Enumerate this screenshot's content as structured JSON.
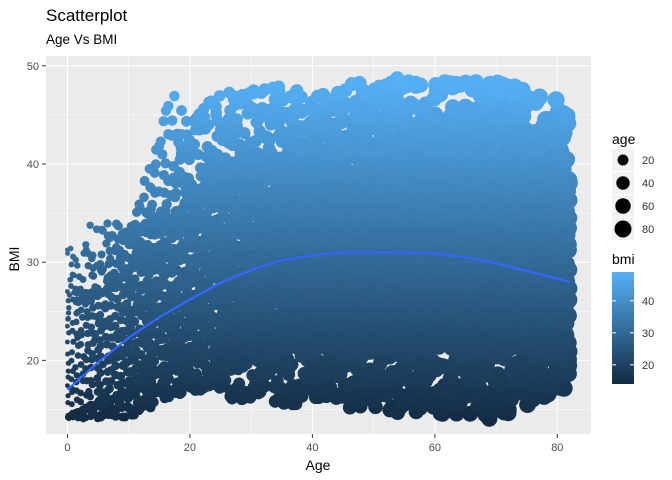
{
  "chart_data": {
    "type": "scatter",
    "title": "Scatterplot",
    "subtitle": "Age Vs BMI",
    "xlabel": "Age",
    "ylabel": "BMI",
    "xlim": [
      -3.5,
      85.5
    ],
    "ylim": [
      12.5,
      51.0
    ],
    "x_ticks": [
      0,
      20,
      40,
      60,
      80
    ],
    "y_ticks": [
      20,
      30,
      40,
      50
    ],
    "grid": true,
    "point_color_variable": "bmi",
    "point_size_variable": "age",
    "point_color_range": [
      "#132B43",
      "#56B1F7"
    ],
    "smooth": {
      "color": "#3366FF",
      "x": [
        0,
        5,
        10,
        15,
        20,
        25,
        30,
        35,
        40,
        45,
        50,
        55,
        60,
        65,
        70,
        75,
        82
      ],
      "y": [
        17.0,
        19.8,
        22.3,
        24.4,
        26.2,
        27.9,
        29.2,
        30.2,
        30.7,
        31.0,
        31.0,
        31.0,
        30.9,
        30.5,
        29.9,
        29.1,
        28.0
      ]
    },
    "legends": [
      {
        "title": "age",
        "type": "size",
        "labels": [
          "20",
          "40",
          "60",
          "80"
        ],
        "values": [
          20,
          40,
          60,
          80
        ]
      },
      {
        "title": "bmi",
        "type": "colorbar",
        "labels": [
          "20",
          "30",
          "40"
        ],
        "values": [
          20,
          30,
          40
        ],
        "range": [
          14,
          49
        ]
      }
    ],
    "envelope": {
      "age": [
        0,
        2,
        4,
        6,
        8,
        10,
        12,
        14,
        16,
        18,
        20,
        24,
        28,
        32,
        36,
        40,
        50,
        60,
        70,
        78,
        82
      ],
      "bmi_min": [
        14.0,
        14.0,
        14.0,
        14.0,
        14.0,
        14.2,
        14.5,
        15.0,
        16.0,
        16.5,
        17.0,
        16.5,
        16.0,
        16.0,
        15.5,
        15.5,
        15.0,
        14.0,
        14.0,
        16.0,
        17.5
      ],
      "bmi_max": [
        33.0,
        31.0,
        34.0,
        35.0,
        34.0,
        34.5,
        37.0,
        41.0,
        46.0,
        48.5,
        44.0,
        48.0,
        47.0,
        48.5,
        48.0,
        47.0,
        49.0,
        48.5,
        48.5,
        47.0,
        47.5
      ],
      "bmi_dense_low": [
        14.5,
        15.0,
        15.5,
        16.0,
        16.5,
        17.0,
        18.0,
        19.0,
        19.5,
        20.0,
        20.5,
        21.0,
        21.0,
        21.0,
        21.5,
        21.5,
        21.5,
        21.5,
        21.5,
        21.5,
        22.0
      ],
      "bmi_dense_high": [
        24.0,
        25.0,
        26.0,
        27.0,
        28.0,
        29.0,
        31.0,
        32.5,
        34.0,
        35.0,
        36.5,
        38.0,
        39.0,
        40.0,
        40.5,
        41.0,
        41.0,
        41.0,
        40.5,
        39.0,
        37.0
      ]
    }
  }
}
